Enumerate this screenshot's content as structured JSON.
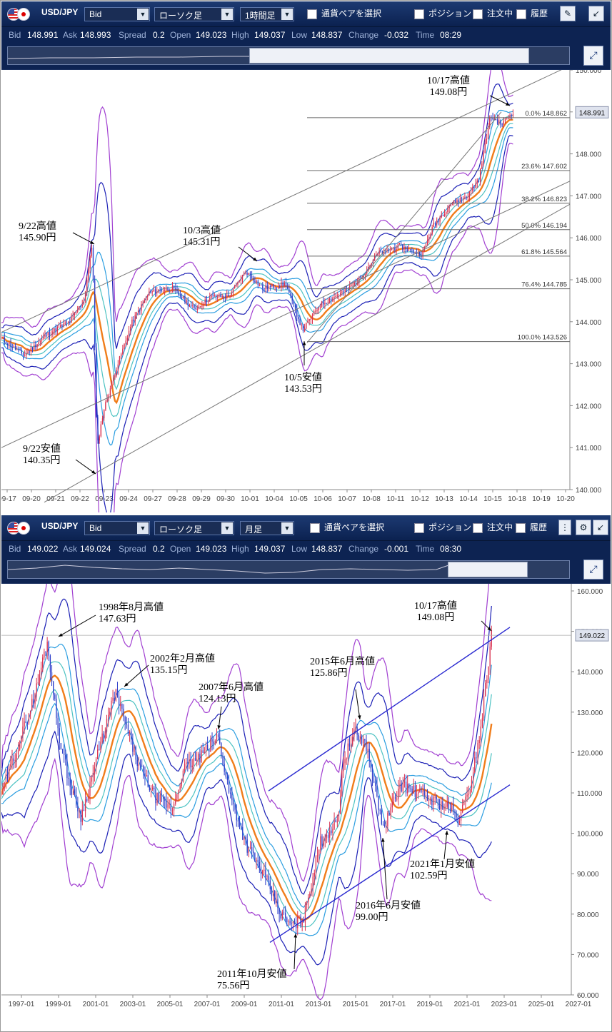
{
  "panels": [
    {
      "pair": "USD/JPY",
      "price_type": "Bid",
      "chart_type": "ローソク足",
      "timeframe": "1時間足",
      "checks": [
        "通貨ペアを選択",
        "ポジション",
        "注文中",
        "履歴"
      ],
      "info": {
        "bid_k": "Bid",
        "bid": "148.991",
        "ask_k": "Ask",
        "ask": "148.993",
        "spread_k": "Spread",
        "spread": "0.2",
        "open_k": "Open",
        "open": "149.023",
        "high_k": "High",
        "high": "149.037",
        "low_k": "Low",
        "low": "148.837",
        "change_k": "Change",
        "change": "-0.032",
        "time_k": "Time",
        "time": "08:29"
      },
      "annotations": [
        {
          "title": "10/17高値",
          "value": "149.08円"
        },
        {
          "title": "9/22高値",
          "value": "145.90円"
        },
        {
          "title": "10/3高値",
          "value": "145.31円"
        },
        {
          "title": "10/5安値",
          "value": "143.53円"
        },
        {
          "title": "9/22安値",
          "value": "140.35円"
        }
      ],
      "current_price": "148.991",
      "fib_labels": [
        {
          "level": "0.0%",
          "price": "148.862"
        },
        {
          "level": "23.6%",
          "price": "147.602"
        },
        {
          "level": "38.2%",
          "price": "146.823"
        },
        {
          "level": "50.0%",
          "price": "146.194"
        },
        {
          "level": "61.8%",
          "price": "145.564"
        },
        {
          "level": "76.4%",
          "price": "144.785"
        },
        {
          "level": "100.0%",
          "price": "143.526"
        }
      ]
    },
    {
      "pair": "USD/JPY",
      "price_type": "Bid",
      "chart_type": "ローソク足",
      "timeframe": "月足",
      "checks": [
        "通貨ペアを選択",
        "ポジション",
        "注文中",
        "履歴"
      ],
      "info": {
        "bid_k": "Bid",
        "bid": "149.022",
        "ask_k": "Ask",
        "ask": "149.024",
        "spread_k": "Spread",
        "spread": "0.2",
        "open_k": "Open",
        "open": "149.023",
        "high_k": "High",
        "high": "149.037",
        "low_k": "Low",
        "low": "148.837",
        "change_k": "Change",
        "change": "-0.001",
        "time_k": "Time",
        "time": "08:30"
      },
      "annotations": [
        {
          "title": "1998年8月高値",
          "value": "147.63円"
        },
        {
          "title": "2002年2月高値",
          "value": "135.15円"
        },
        {
          "title": "2007年6月高値",
          "value": "124.13円"
        },
        {
          "title": "2015年6月高値",
          "value": "125.86円"
        },
        {
          "title": "10/17高値",
          "value": "149.08円"
        },
        {
          "title": "2021年1月安値",
          "value": "102.59円"
        },
        {
          "title": "2016年6月安値",
          "value": "99.00円"
        },
        {
          "title": "2011年10月安値",
          "value": "75.56円"
        }
      ],
      "current_price": "149.022"
    }
  ],
  "chart_data": [
    {
      "type": "candlestick",
      "ylim": [
        140.0,
        150.0
      ],
      "y_ticks": [
        "150.000",
        "149.000",
        "148.000",
        "147.000",
        "146.000",
        "145.000",
        "144.000",
        "143.000",
        "142.000",
        "141.000",
        "140.000"
      ],
      "x_ticks": [
        "09-17",
        "09-20",
        "09-21",
        "09-22",
        "09-23",
        "09-24",
        "09-27",
        "09-28",
        "09-29",
        "09-30",
        "10-01",
        "10-04",
        "10-05",
        "10-06",
        "10-07",
        "10-08",
        "10-11",
        "10-12",
        "10-13",
        "10-14",
        "10-15",
        "10-18",
        "10-19",
        "10-20"
      ],
      "close_path": [
        [
          0,
          143.6
        ],
        [
          0.04,
          143.2
        ],
        [
          0.08,
          143.7
        ],
        [
          0.12,
          144.0
        ],
        [
          0.145,
          144.5
        ],
        [
          0.16,
          145.9
        ],
        [
          0.168,
          141.0
        ],
        [
          0.18,
          141.9
        ],
        [
          0.2,
          142.8
        ],
        [
          0.23,
          144.0
        ],
        [
          0.26,
          144.7
        ],
        [
          0.3,
          144.8
        ],
        [
          0.34,
          144.3
        ],
        [
          0.37,
          144.6
        ],
        [
          0.4,
          144.6
        ],
        [
          0.43,
          145.2
        ],
        [
          0.46,
          144.8
        ],
        [
          0.5,
          144.9
        ],
        [
          0.53,
          143.8
        ],
        [
          0.56,
          144.4
        ],
        [
          0.6,
          144.7
        ],
        [
          0.63,
          145.0
        ],
        [
          0.66,
          145.6
        ],
        [
          0.7,
          145.8
        ],
        [
          0.74,
          145.6
        ],
        [
          0.76,
          146.3
        ],
        [
          0.79,
          146.8
        ],
        [
          0.82,
          147.0
        ],
        [
          0.84,
          147.4
        ],
        [
          0.86,
          148.9
        ],
        [
          0.88,
          148.7
        ],
        [
          0.9,
          149.0
        ]
      ],
      "high_annotations": [
        {
          "label": "10/17高値",
          "value": 149.08
        },
        {
          "label": "9/22高値",
          "value": 145.9
        },
        {
          "label": "10/3高値",
          "value": 145.31
        }
      ],
      "low_annotations": [
        {
          "label": "10/5安値",
          "value": 143.53
        },
        {
          "label": "9/22安値",
          "value": 140.35
        }
      ],
      "fibonacci": [
        {
          "level": "0.0%",
          "price": 148.862
        },
        {
          "level": "23.6%",
          "price": 147.602
        },
        {
          "level": "38.2%",
          "price": 146.823
        },
        {
          "level": "50.0%",
          "price": 146.194
        },
        {
          "level": "61.8%",
          "price": 145.564
        },
        {
          "level": "76.4%",
          "price": 144.785
        },
        {
          "level": "100.0%",
          "price": 143.526
        }
      ],
      "current_price": 148.991
    },
    {
      "type": "candlestick",
      "ylim": [
        60.0,
        160.0
      ],
      "y_ticks": [
        "160.000",
        "150.000",
        "140.000",
        "130.000",
        "120.000",
        "110.000",
        "100.000",
        "90.000",
        "80.000",
        "70.000",
        "60.000"
      ],
      "x_ticks": [
        "1997-01",
        "1999-01",
        "2001-01",
        "2003-01",
        "2005-01",
        "2007-01",
        "2009-01",
        "2011-01",
        "2013-01",
        "2015-01",
        "2017-01",
        "2019-01",
        "2021-01",
        "2023-01",
        "2025-01",
        "2027-01"
      ],
      "close_path": [
        [
          0,
          110
        ],
        [
          0.03,
          122
        ],
        [
          0.06,
          135
        ],
        [
          0.08,
          147.6
        ],
        [
          0.1,
          125
        ],
        [
          0.12,
          112
        ],
        [
          0.14,
          104
        ],
        [
          0.17,
          120
        ],
        [
          0.2,
          135
        ],
        [
          0.24,
          117
        ],
        [
          0.27,
          109
        ],
        [
          0.3,
          106
        ],
        [
          0.32,
          116
        ],
        [
          0.35,
          119
        ],
        [
          0.38,
          124
        ],
        [
          0.4,
          110
        ],
        [
          0.43,
          97
        ],
        [
          0.46,
          90
        ],
        [
          0.49,
          80
        ],
        [
          0.51,
          77
        ],
        [
          0.53,
          79
        ],
        [
          0.56,
          98
        ],
        [
          0.59,
          103
        ],
        [
          0.6,
          118
        ],
        [
          0.62,
          125
        ],
        [
          0.64,
          122
        ],
        [
          0.66,
          108
        ],
        [
          0.67,
          101
        ],
        [
          0.7,
          112
        ],
        [
          0.73,
          110
        ],
        [
          0.76,
          108
        ],
        [
          0.79,
          106
        ],
        [
          0.8,
          103
        ],
        [
          0.82,
          110
        ],
        [
          0.84,
          125
        ],
        [
          0.86,
          149
        ]
      ],
      "high_annotations": [
        {
          "label": "1998年8月高値",
          "value": 147.63
        },
        {
          "label": "2002年2月高値",
          "value": 135.15
        },
        {
          "label": "2007年6月高値",
          "value": 124.13
        },
        {
          "label": "2015年6月高値",
          "value": 125.86
        },
        {
          "label": "10/17高値",
          "value": 149.08
        }
      ],
      "low_annotations": [
        {
          "label": "2021年1月安値",
          "value": 102.59
        },
        {
          "label": "2016年6月安値",
          "value": 99.0
        },
        {
          "label": "2011年10月安値",
          "value": 75.56
        }
      ],
      "current_price": 149.022
    }
  ]
}
